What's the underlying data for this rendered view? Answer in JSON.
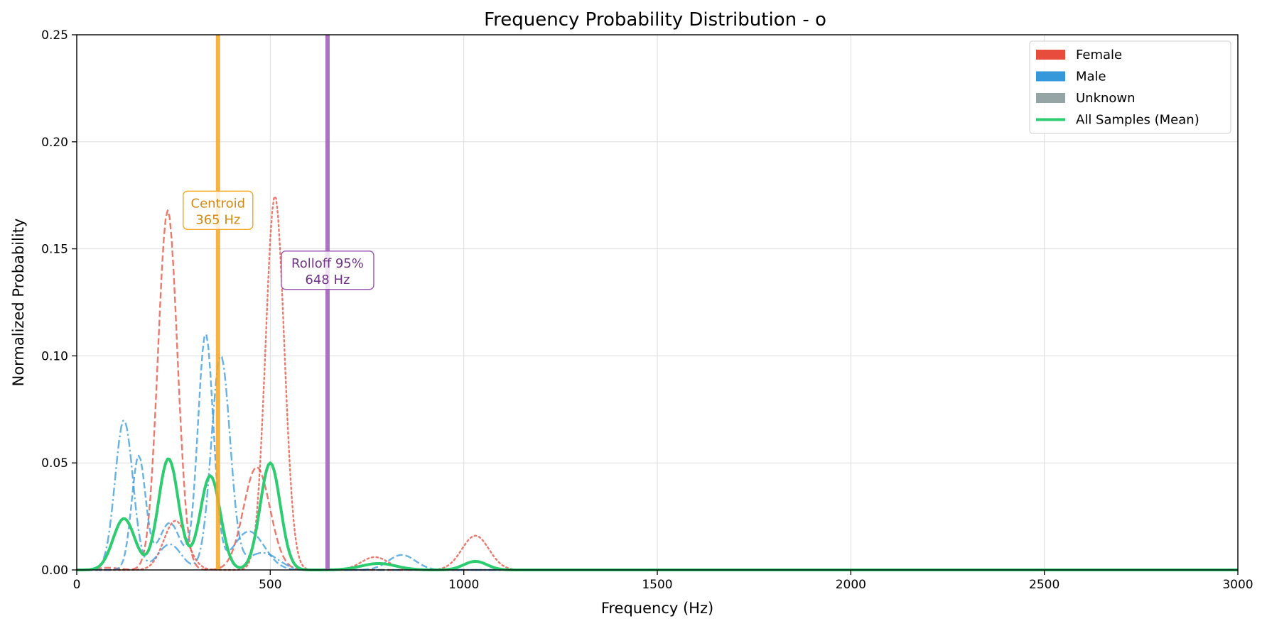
{
  "chart_data": {
    "type": "line",
    "title": "Frequency Probability Distribution - o",
    "xlabel": "Frequency (Hz)",
    "ylabel": "Normalized Probability",
    "xlim": [
      0,
      3000
    ],
    "ylim": [
      0,
      0.25
    ],
    "xticks": [
      0,
      500,
      1000,
      1500,
      2000,
      2500,
      3000
    ],
    "xtick_labels": [
      "0",
      "500",
      "1000",
      "1500",
      "2000",
      "2500",
      "3000"
    ],
    "yticks": [
      0,
      0.05,
      0.1,
      0.15,
      0.2,
      0.25
    ],
    "ytick_labels": [
      "0.00",
      "0.05",
      "0.10",
      "0.15",
      "0.20",
      "0.25"
    ],
    "grid": true,
    "legend_position": "top-right",
    "legend": [
      {
        "label": "Female",
        "kind": "patch",
        "color": "#e74c3c"
      },
      {
        "label": "Male",
        "kind": "patch",
        "color": "#3498db"
      },
      {
        "label": "Unknown",
        "kind": "patch",
        "color": "#95a5a6"
      },
      {
        "label": "All Samples (Mean)",
        "kind": "line",
        "color": "#2ecc71"
      }
    ],
    "series": [
      {
        "group": "female",
        "color": "#e74c3c",
        "dash": "dashed",
        "width": 2.4,
        "opacity": 0.75,
        "peaks": [
          [
            235,
            0.168,
            25
          ],
          [
            465,
            0.048,
            34
          ],
          [
            80,
            0.001,
            30
          ]
        ]
      },
      {
        "group": "female",
        "color": "#e74c3c",
        "dash": "dotted",
        "width": 2.4,
        "opacity": 0.75,
        "peaks": [
          [
            255,
            0.023,
            30
          ],
          [
            512,
            0.175,
            24
          ],
          [
            770,
            0.006,
            35
          ],
          [
            1030,
            0.016,
            35
          ]
        ]
      },
      {
        "group": "male",
        "color": "#3498db",
        "dash": "dashdot",
        "width": 2.4,
        "opacity": 0.75,
        "peaks": [
          [
            122,
            0.07,
            23
          ],
          [
            240,
            0.012,
            30
          ],
          [
            372,
            0.1,
            24
          ],
          [
            480,
            0.008,
            40
          ]
        ]
      },
      {
        "group": "male",
        "color": "#3498db",
        "dash": "dashed",
        "width": 2.4,
        "opacity": 0.75,
        "peaks": [
          [
            160,
            0.053,
            18
          ],
          [
            240,
            0.022,
            28
          ],
          [
            333,
            0.11,
            20
          ],
          [
            445,
            0.018,
            40
          ],
          [
            840,
            0.007,
            35
          ]
        ]
      },
      {
        "group": "mean",
        "color": "#2ecc71",
        "dash": "solid",
        "width": 4,
        "opacity": 1,
        "peaks": [
          [
            122,
            0.024,
            28
          ],
          [
            237,
            0.052,
            26
          ],
          [
            345,
            0.044,
            26
          ],
          [
            500,
            0.05,
            26
          ],
          [
            780,
            0.003,
            45
          ],
          [
            1030,
            0.004,
            30
          ]
        ]
      }
    ],
    "vlines": [
      {
        "x": 365,
        "color": "#f5a623",
        "label": "Centroid",
        "value_label": "365 Hz",
        "text_color": "#d68910",
        "label_y": 0.168
      },
      {
        "x": 648,
        "color": "#9b59b6",
        "label": "Rolloff 95%",
        "value_label": "648 Hz",
        "text_color": "#6c3483",
        "label_y": 0.14
      }
    ]
  }
}
